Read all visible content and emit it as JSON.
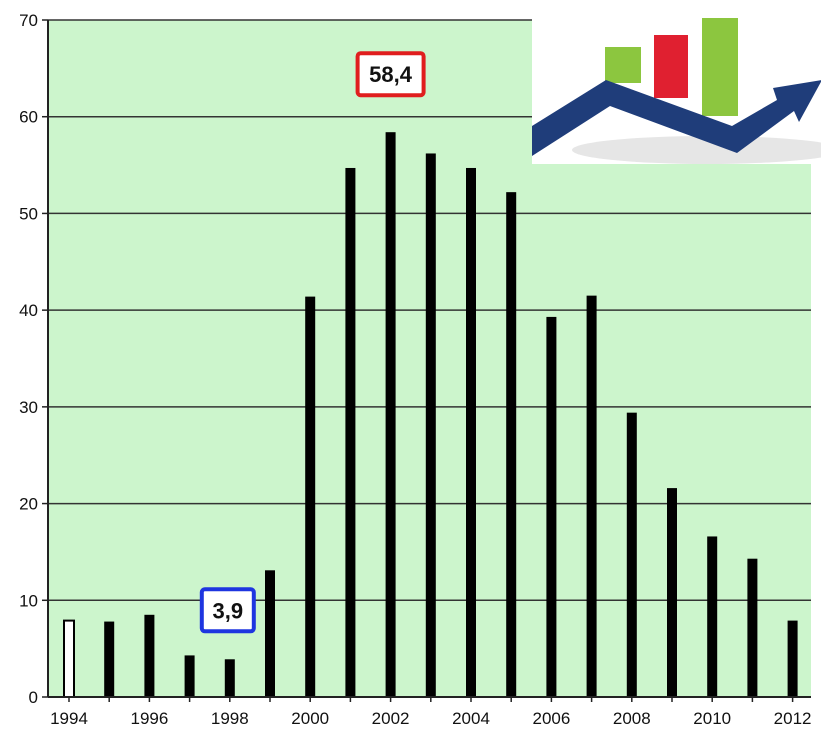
{
  "chart_data": {
    "type": "bar",
    "title": "",
    "xlabel": "",
    "ylabel": "",
    "ylim": [
      0,
      70
    ],
    "yticks": [
      0,
      10,
      20,
      30,
      40,
      50,
      60,
      70
    ],
    "xtick_labels": [
      "1994",
      "1996",
      "1998",
      "2000",
      "2002",
      "2004",
      "2006",
      "2008",
      "2010",
      "2012"
    ],
    "categories": [
      1994,
      1995,
      1996,
      1997,
      1998,
      1999,
      2000,
      2001,
      2002,
      2003,
      2004,
      2005,
      2006,
      2007,
      2008,
      2009,
      2010,
      2011,
      2012
    ],
    "values": [
      7.9,
      7.8,
      8.5,
      4.3,
      3.9,
      13.1,
      41.4,
      54.7,
      58.4,
      56.2,
      54.7,
      52.2,
      39.3,
      41.5,
      29.4,
      21.6,
      16.6,
      14.3,
      7.9
    ],
    "hollow_bars": [
      1994
    ],
    "grid": true,
    "colors": {
      "plot_background": "#ccf5cc",
      "bar": "#000000",
      "hollow_bar_fill": "#ffffff",
      "gridline": "#333333",
      "max_callout_border": "#e01e1e",
      "min_callout_border": "#1e35e0"
    },
    "annotations": [
      {
        "label": "58,4",
        "year": 2002,
        "kind": "max"
      },
      {
        "label": "3,9",
        "year": 1998,
        "kind": "min"
      }
    ]
  },
  "logo": {
    "icon": "growth-chart-logo-icon",
    "colors": {
      "bar1": "#8cc63f",
      "bar2": "#e02030",
      "bar3": "#8cc63f",
      "arrow": "#1f3d7a",
      "shadow": "#e6e6e6"
    }
  }
}
